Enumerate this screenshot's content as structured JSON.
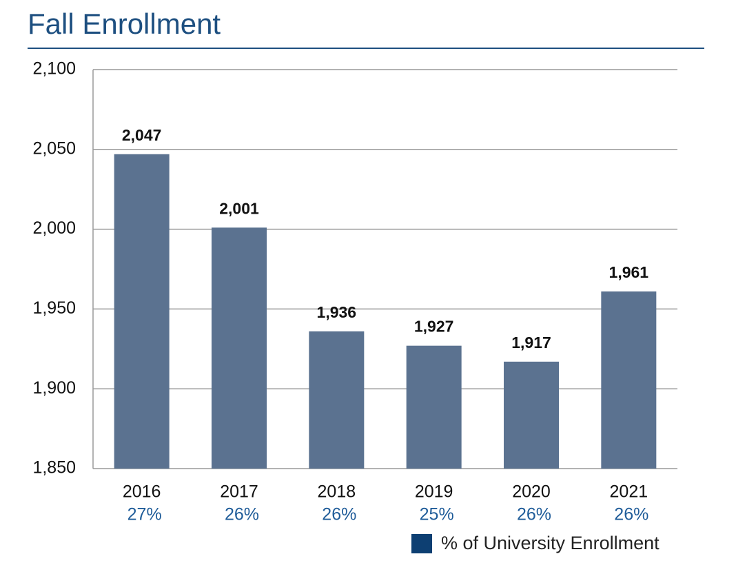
{
  "chart_data": {
    "type": "bar",
    "title": "Fall Enrollment",
    "categories": [
      "2016",
      "2017",
      "2018",
      "2019",
      "2020",
      "2021"
    ],
    "values": [
      2047,
      2001,
      1936,
      1927,
      1917,
      1961
    ],
    "value_labels": [
      "2,047",
      "2,001",
      "1,936",
      "1,927",
      "1,917",
      "1,961"
    ],
    "color": "#5b7290",
    "ylim": [
      1850,
      2100
    ],
    "yticks": [
      {
        "value": 1850,
        "label": "1,850"
      },
      {
        "value": 1900,
        "label": "1,900"
      },
      {
        "value": 1950,
        "label": "1,950"
      },
      {
        "value": 2000,
        "label": "2,000"
      },
      {
        "value": 2050,
        "label": "2,050"
      },
      {
        "value": 2100,
        "label": "2,100"
      }
    ],
    "grid": true,
    "share": {
      "name": "% of University Enrollment",
      "color": "#0d3f72",
      "values": [
        27,
        26,
        26,
        25,
        26,
        26
      ],
      "value_labels": [
        "27%",
        "26%",
        "26%",
        "25%",
        "26%",
        "26%"
      ]
    }
  }
}
